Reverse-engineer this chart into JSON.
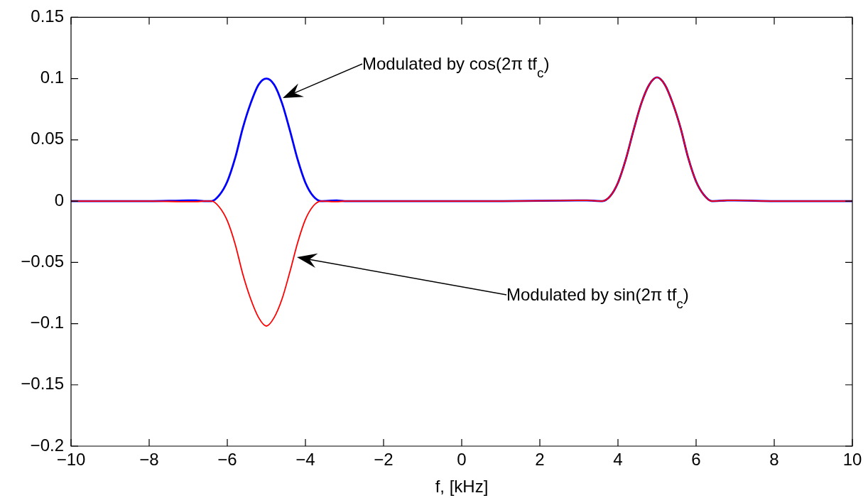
{
  "chart_data": {
    "type": "line",
    "xlabel": "f, [kHz]",
    "xlim": [
      -10,
      10
    ],
    "xticks": [
      {
        "value": -10,
        "label": "−10"
      },
      {
        "value": -8,
        "label": "−8"
      },
      {
        "value": -6,
        "label": "−6"
      },
      {
        "value": -4,
        "label": "−4"
      },
      {
        "value": -2,
        "label": "−2"
      },
      0,
      2,
      4,
      6,
      8,
      10
    ],
    "ylim": [
      -0.2,
      0.15
    ],
    "yticks": [
      {
        "value": -0.2,
        "label": "−0.2"
      },
      {
        "value": -0.15,
        "label": "−0.15"
      },
      {
        "value": -0.1,
        "label": "−0.1"
      },
      {
        "value": -0.05,
        "label": "−0.05"
      },
      0,
      0.05,
      0.1,
      0.15
    ],
    "x": [
      -10,
      -8,
      -7,
      -6.8,
      -6.6,
      -6.4,
      -6.2,
      -6,
      -5.8,
      -5.6,
      -5.4,
      -5.2,
      -5,
      -4.8,
      -4.6,
      -4.4,
      -4.2,
      -4,
      -3.8,
      -3.6,
      -3.2,
      -3,
      -1,
      1,
      3,
      3.2,
      3.6,
      3.8,
      4,
      4.2,
      4.4,
      4.6,
      4.8,
      5,
      5.2,
      5.4,
      5.6,
      5.8,
      6,
      6.2,
      6.4,
      6.8,
      7,
      8,
      10
    ],
    "series": [
      {
        "color": "#0000ff",
        "values": [
          0,
          0,
          0.0005,
          0.0005,
          0,
          0,
          0.005,
          0.016,
          0.035,
          0.06,
          0.08,
          0.095,
          0.1,
          0.095,
          0.08,
          0.058,
          0.034,
          0.015,
          0.004,
          0,
          0.0005,
          0,
          0,
          0,
          0.0005,
          0.0005,
          0,
          0.004,
          0.015,
          0.034,
          0.058,
          0.08,
          0.095,
          0.101,
          0.095,
          0.08,
          0.06,
          0.035,
          0.016,
          0.005,
          0,
          0.0005,
          0.0005,
          0,
          0
        ]
      },
      {
        "color": "#ff0000",
        "values": [
          0,
          0,
          -0.0005,
          -0.0005,
          0,
          0,
          -0.005,
          -0.016,
          -0.035,
          -0.06,
          -0.08,
          -0.095,
          -0.102,
          -0.095,
          -0.08,
          -0.058,
          -0.034,
          -0.015,
          -0.004,
          0,
          -0.0005,
          0,
          0,
          0,
          0.0005,
          0.0005,
          0,
          0.004,
          0.015,
          0.034,
          0.058,
          0.08,
          0.095,
          0.101,
          0.095,
          0.08,
          0.06,
          0.035,
          0.016,
          0.005,
          0,
          0.0005,
          0.0005,
          0,
          0
        ]
      }
    ],
    "annotations": [
      "Modulated by cos(2π tf$_{c}$)",
      "Modulated by sin(2π tf$_{c}$)"
    ]
  }
}
